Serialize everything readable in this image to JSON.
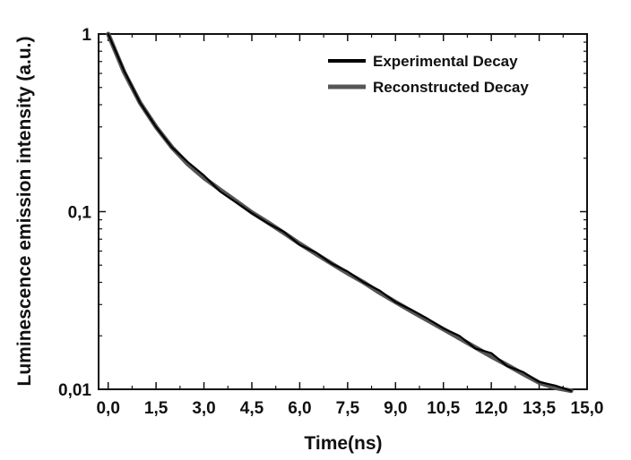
{
  "chart_data": {
    "type": "line",
    "xlabel": "Time(ns)",
    "ylabel": "Luminescence emission intensity (a.u.)",
    "xlim": [
      -0.3,
      15.0
    ],
    "ylim": [
      0.01,
      1
    ],
    "yscale": "log",
    "grid": false,
    "legend_position": "top-right",
    "x_ticks": [
      0.0,
      1.5,
      3.0,
      4.5,
      6.0,
      7.5,
      9.0,
      10.5,
      12.0,
      13.5,
      15.0
    ],
    "x_tick_labels": [
      "0,0",
      "1,5",
      "3,0",
      "4,5",
      "6,0",
      "7,5",
      "9,0",
      "10,5",
      "12,0",
      "13,5",
      "15,0"
    ],
    "y_ticks": [
      1,
      0.1,
      0.01
    ],
    "y_tick_labels": [
      "1",
      "0,1",
      "0,01"
    ],
    "series": [
      {
        "name": "Experimental Decay",
        "color": "#000000",
        "x": [
          0.0,
          0.5,
          1.0,
          1.5,
          2.0,
          2.5,
          3.0,
          3.5,
          4.0,
          4.5,
          5.0,
          5.5,
          6.0,
          6.5,
          7.0,
          7.5,
          8.0,
          8.5,
          9.0,
          9.5,
          10.0,
          10.5,
          11.0,
          11.5,
          12.0,
          12.5,
          13.0,
          13.5,
          14.0,
          14.5
        ],
        "y": [
          1.0,
          0.62,
          0.41,
          0.3,
          0.23,
          0.19,
          0.16,
          0.13,
          0.113,
          0.098,
          0.086,
          0.077,
          0.065,
          0.059,
          0.051,
          0.046,
          0.04,
          0.036,
          0.031,
          0.028,
          0.025,
          0.022,
          0.02,
          0.017,
          0.016,
          0.0135,
          0.0125,
          0.011,
          0.0105,
          0.0098
        ]
      },
      {
        "name": "Reconstructed Decay",
        "color": "#555555",
        "x": [
          0.0,
          0.5,
          1.0,
          1.5,
          2.0,
          2.5,
          3.0,
          3.5,
          4.0,
          4.5,
          5.0,
          5.5,
          6.0,
          6.5,
          7.0,
          7.5,
          8.0,
          8.5,
          9.0,
          9.5,
          10.0,
          10.5,
          11.0,
          11.5,
          12.0,
          12.5,
          13.0,
          13.5,
          14.0,
          14.5
        ],
        "y": [
          1.0,
          0.61,
          0.41,
          0.3,
          0.23,
          0.185,
          0.155,
          0.133,
          0.115,
          0.099,
          0.087,
          0.076,
          0.066,
          0.058,
          0.051,
          0.045,
          0.04,
          0.035,
          0.031,
          0.0275,
          0.0245,
          0.0218,
          0.0194,
          0.0172,
          0.0153,
          0.0137,
          0.0122,
          0.0109,
          0.0102,
          0.0098
        ]
      }
    ]
  }
}
